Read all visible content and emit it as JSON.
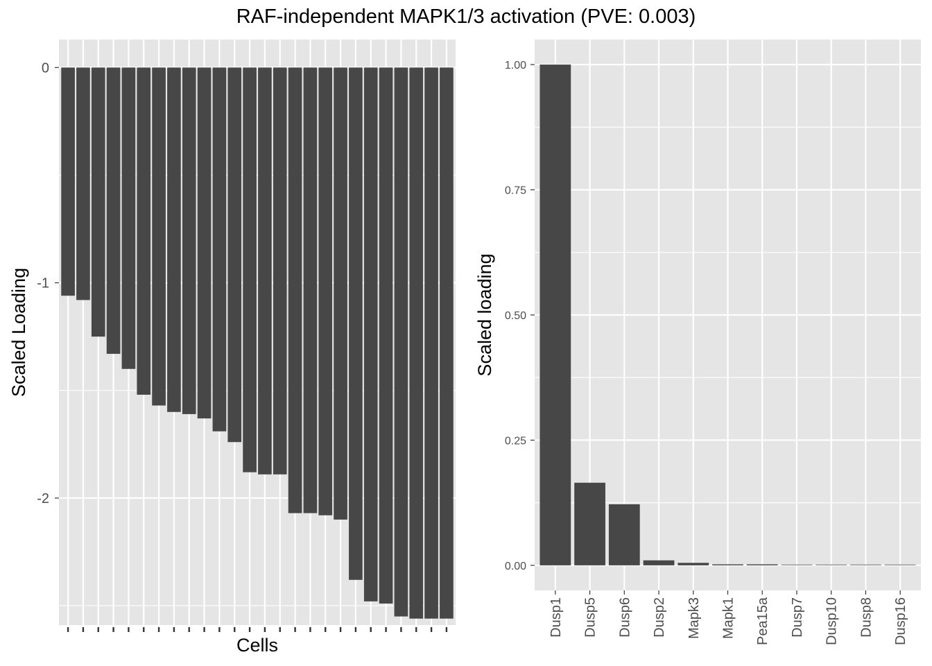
{
  "figure": {
    "title": "RAF-independent MAPK1/3 activation (PVE: 0.003)"
  },
  "colors": {
    "panel_background": "#e5e5e5",
    "grid_line": "#ffffff",
    "bar_fill": "#474747",
    "tick_text": "#4d4d4d",
    "axis_title_text": "#000000"
  },
  "chart_data": [
    {
      "type": "bar",
      "xlabel": "Cells",
      "ylabel": "Scaled Loading",
      "ylim": [
        -2.59,
        0.13
      ],
      "yticks": [
        0,
        -1,
        -2
      ],
      "ytick_labels": [
        "0",
        "-1",
        "-2"
      ],
      "x_tick_labels_shown": false,
      "grid": true,
      "values": [
        -1.06,
        -1.08,
        -1.25,
        -1.33,
        -1.4,
        -1.52,
        -1.57,
        -1.6,
        -1.61,
        -1.63,
        -1.69,
        -1.74,
        -1.88,
        -1.89,
        -1.89,
        -2.07,
        -2.07,
        -2.08,
        -2.1,
        -2.38,
        -2.48,
        -2.49,
        -2.55,
        -2.56,
        -2.56,
        -2.56
      ]
    },
    {
      "type": "bar",
      "xlabel": "",
      "ylabel": "Scaled loading",
      "ylim": [
        -0.05,
        1.05
      ],
      "yticks": [
        0.0,
        0.25,
        0.5,
        0.75,
        1.0
      ],
      "ytick_labels": [
        "0.00",
        "0.25",
        "0.50",
        "0.75",
        "1.00"
      ],
      "grid": true,
      "categories": [
        "Dusp1",
        "Dusp5",
        "Dusp6",
        "Dusp2",
        "Mapk3",
        "Mapk1",
        "Pea15a",
        "Dusp7",
        "Dusp10",
        "Dusp8",
        "Dusp16"
      ],
      "values": [
        1.0,
        0.165,
        0.122,
        0.01,
        0.005,
        0.002,
        0.002,
        0.001,
        0.001,
        0.001,
        0.001
      ]
    }
  ]
}
